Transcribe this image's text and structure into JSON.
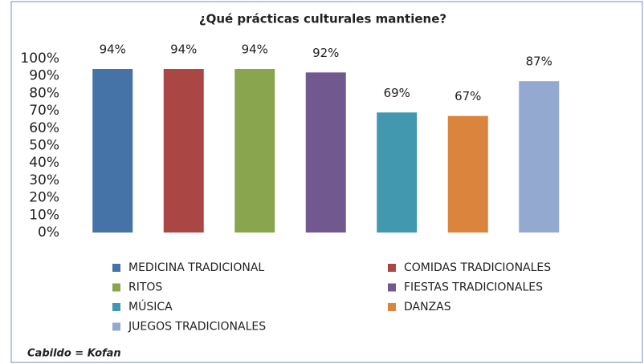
{
  "chart_data": {
    "type": "bar",
    "title": "¿Qué prácticas culturales mantiene?",
    "annotation": "Cabildo  = Kofan",
    "categories": [
      "MEDICINA TRADICIONAL",
      "COMIDAS TRADICIONALES",
      "RITOS",
      "FIESTAS TRADICIONALES",
      "MÚSICA",
      "DANZAS",
      "JUEGOS TRADICIONALES"
    ],
    "values": [
      94,
      94,
      94,
      92,
      69,
      67,
      87
    ],
    "value_labels": [
      "94%",
      "94%",
      "94%",
      "92%",
      "69%",
      "67%",
      "87%"
    ],
    "colors": [
      "#4572a7",
      "#aa4643",
      "#89a54e",
      "#71588f",
      "#4198af",
      "#db843d",
      "#93a9cf"
    ],
    "ylim": [
      0,
      100
    ],
    "yticks": [
      {
        "value": 0,
        "label": "0%"
      },
      {
        "value": 10,
        "label": "10%"
      },
      {
        "value": 20,
        "label": "20%"
      },
      {
        "value": 30,
        "label": "30%"
      },
      {
        "value": 40,
        "label": "40%"
      },
      {
        "value": 50,
        "label": "50%"
      },
      {
        "value": 60,
        "label": "60%"
      },
      {
        "value": 70,
        "label": "70%"
      },
      {
        "value": 80,
        "label": "80%"
      },
      {
        "value": 90,
        "label": "90%"
      },
      {
        "value": 100,
        "label": "100%"
      }
    ],
    "grid": false,
    "legend": "bottom"
  }
}
